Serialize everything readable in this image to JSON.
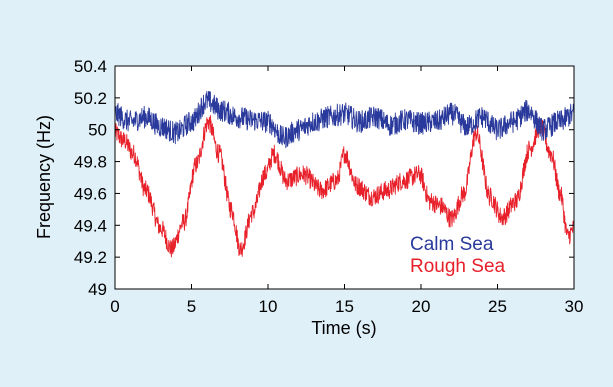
{
  "chart_data": {
    "type": "line",
    "xlabel": "Time (s)",
    "ylabel": "Frequency (Hz)",
    "xlim": [
      0,
      30
    ],
    "ylim": [
      49,
      50.4
    ],
    "xticks": [
      0,
      5,
      10,
      15,
      20,
      25,
      30
    ],
    "xtick_labels": [
      "0",
      "5",
      "10",
      "15",
      "20",
      "25",
      "30"
    ],
    "yticks": [
      49,
      49.2,
      49.4,
      49.6,
      49.8,
      50,
      50.2,
      50.4
    ],
    "ytick_labels": [
      "49",
      "49.2",
      "49.4",
      "49.6",
      "49.8",
      "50",
      "50.2",
      "50.4"
    ],
    "grid": false,
    "legend": "inside lower-right",
    "series": [
      {
        "name": "Calm Sea",
        "color": "#2a3a9c",
        "x": [
          0,
          1,
          2,
          3,
          4,
          5,
          6,
          7,
          8,
          9,
          10,
          11,
          12,
          13,
          14,
          15,
          16,
          17,
          18,
          19,
          20,
          21,
          22,
          23,
          24,
          25,
          26,
          27,
          28,
          29,
          30
        ],
        "y": [
          50.1,
          50.05,
          50.08,
          50.02,
          49.98,
          50.05,
          50.18,
          50.12,
          50.08,
          50.06,
          50.05,
          49.95,
          50.0,
          50.05,
          50.08,
          50.1,
          50.05,
          50.08,
          50.03,
          50.06,
          50.04,
          50.05,
          50.1,
          50.02,
          50.08,
          50.0,
          50.05,
          50.12,
          50.0,
          50.05,
          50.1
        ],
        "noise": 0.07
      },
      {
        "name": "Rough Sea",
        "color": "#e8202a",
        "x": [
          0,
          0.6,
          1.2,
          2,
          3,
          3.7,
          4.5,
          5.3,
          6.1,
          6.8,
          7.6,
          8.2,
          9.0,
          9.8,
          10.4,
          11.2,
          12.3,
          13.5,
          14.5,
          15.0,
          15.8,
          16.8,
          17.8,
          18.8,
          19.9,
          20.6,
          21.3,
          22.0,
          22.8,
          23.6,
          24.5,
          25.3,
          26.2,
          27.1,
          27.8,
          28.5,
          29.1,
          29.6,
          30
        ],
        "y": [
          49.98,
          49.93,
          49.85,
          49.62,
          49.38,
          49.25,
          49.42,
          49.78,
          50.05,
          49.85,
          49.5,
          49.25,
          49.48,
          49.72,
          49.85,
          49.68,
          49.72,
          49.62,
          49.68,
          49.85,
          49.65,
          49.58,
          49.62,
          49.68,
          49.72,
          49.55,
          49.52,
          49.44,
          49.6,
          49.98,
          49.58,
          49.45,
          49.55,
          49.88,
          50.02,
          49.85,
          49.6,
          49.33,
          49.38
        ],
        "noise": 0.06
      }
    ]
  }
}
